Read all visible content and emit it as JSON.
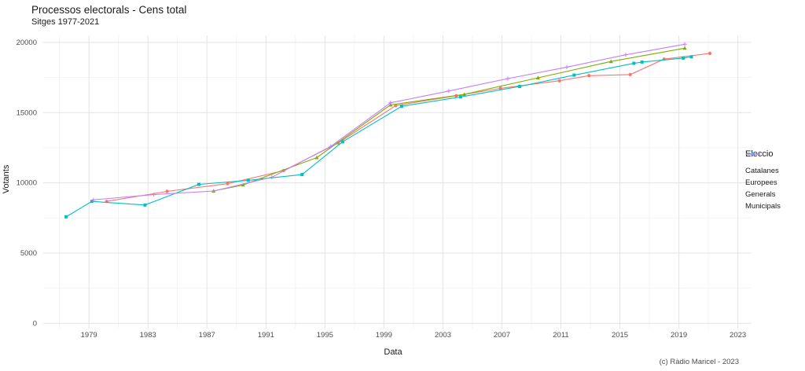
{
  "header": {
    "title": "Processos electorals - Cens total",
    "subtitle": "Sitges 1977-2021",
    "caption": "(c) Ràdio Maricel - 2023"
  },
  "chart_data": {
    "type": "line",
    "title": "Processos electorals - Cens total",
    "subtitle": "Sitges 1977-2021",
    "xlabel": "Data",
    "ylabel": "Votants",
    "caption": "(c) Ràdio Maricel - 2023",
    "x_ticks": [
      1979,
      1983,
      1987,
      1991,
      1995,
      1999,
      2003,
      2007,
      2011,
      2015,
      2019,
      2023
    ],
    "y_ticks": [
      0,
      5000,
      10000,
      15000,
      20000
    ],
    "xlim": [
      1975.9,
      2023.9
    ],
    "ylim": [
      -375,
      20500
    ],
    "grid": true,
    "grid_major_color": "#e3e3e3",
    "grid_minor_color": "#f0f0f0",
    "legend_title": "Eleccio",
    "legend_position": "right",
    "series": [
      {
        "name": "Catalanes",
        "color": "#F8766D",
        "marker": "circle",
        "points": [
          [
            1980.2,
            8680
          ],
          [
            1984.3,
            9390
          ],
          [
            1988.4,
            9940
          ],
          [
            1992.2,
            10870
          ],
          [
            1995.9,
            12830
          ],
          [
            1999.8,
            15500
          ],
          [
            2003.9,
            16200
          ],
          [
            2006.9,
            16730
          ],
          [
            2010.9,
            17270
          ],
          [
            2012.9,
            17630
          ],
          [
            2015.7,
            17710
          ],
          [
            2018.0,
            18810
          ],
          [
            2021.1,
            19220
          ]
        ]
      },
      {
        "name": "Europees",
        "color": "#7CAE00",
        "marker": "triangle",
        "points": [
          [
            1987.45,
            9420
          ],
          [
            1989.45,
            9850
          ],
          [
            1994.45,
            11800
          ],
          [
            1999.45,
            15550
          ],
          [
            2004.45,
            16300
          ],
          [
            2009.45,
            17480
          ],
          [
            2014.4,
            18640
          ],
          [
            2019.4,
            19590
          ]
        ]
      },
      {
        "name": "Generals",
        "color": "#00BFC4",
        "marker": "square",
        "points": [
          [
            1977.45,
            7580
          ],
          [
            1979.2,
            8680
          ],
          [
            1982.8,
            8420
          ],
          [
            1986.45,
            9890
          ],
          [
            1989.8,
            10180
          ],
          [
            1993.45,
            10590
          ],
          [
            1996.2,
            12920
          ],
          [
            2000.2,
            15450
          ],
          [
            2004.2,
            16120
          ],
          [
            2008.2,
            16860
          ],
          [
            2011.9,
            17670
          ],
          [
            2015.95,
            18510
          ],
          [
            2016.5,
            18600
          ],
          [
            2019.3,
            18880
          ],
          [
            2019.85,
            18970
          ]
        ]
      },
      {
        "name": "Municipals",
        "color": "#C77CFF",
        "marker": "plus",
        "points": [
          [
            1979.3,
            8790
          ],
          [
            1983.4,
            9160
          ],
          [
            1987.45,
            9420
          ],
          [
            1991.4,
            10400
          ],
          [
            1995.4,
            12600
          ],
          [
            1999.45,
            15700
          ],
          [
            2003.4,
            16540
          ],
          [
            2007.4,
            17420
          ],
          [
            2011.4,
            18240
          ],
          [
            2015.4,
            19120
          ],
          [
            2019.4,
            19870
          ]
        ]
      }
    ]
  }
}
